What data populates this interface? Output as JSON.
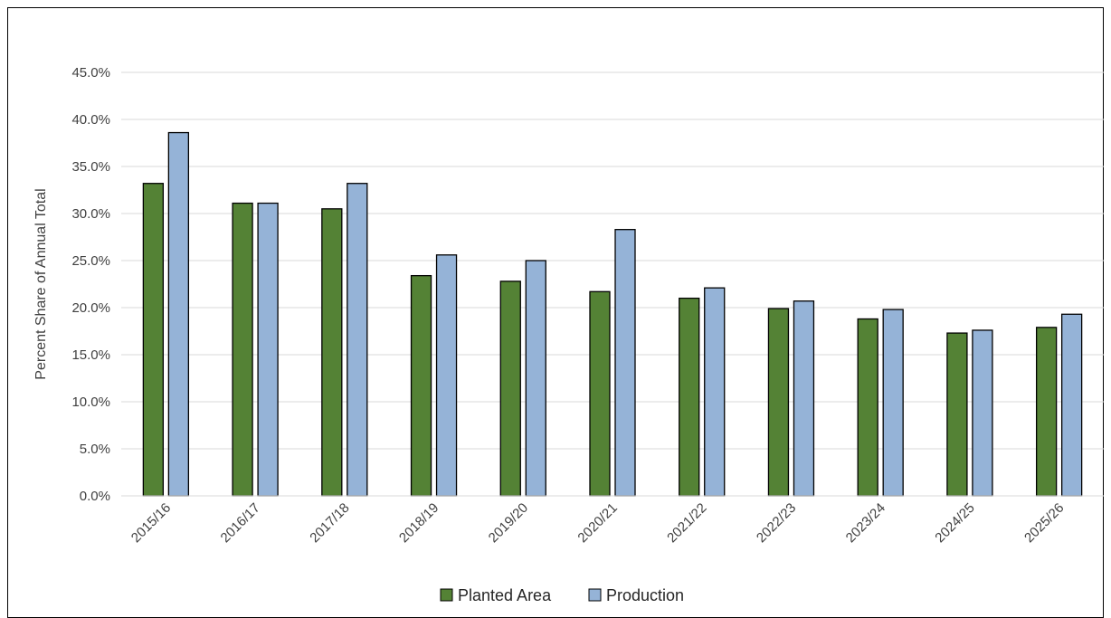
{
  "chart_data": {
    "type": "bar",
    "title": "",
    "xlabel": "",
    "ylabel": "Percent Share of Annual Total",
    "ylim": [
      0,
      45
    ],
    "y_tick_step": 5,
    "y_tick_format": "percent_1dp",
    "grid": "horizontal",
    "legend_position": "bottom-center",
    "categories": [
      "2015/16",
      "2016/17",
      "2017/18",
      "2018/19",
      "2019/20",
      "2020/21",
      "2021/22",
      "2022/23",
      "2023/24",
      "2024/25",
      "2025/26"
    ],
    "series": [
      {
        "name": "Planted Area",
        "color": "#548235",
        "values": [
          33.2,
          31.1,
          30.5,
          23.4,
          22.8,
          21.7,
          21.0,
          19.9,
          18.8,
          17.3,
          17.9
        ]
      },
      {
        "name": "Production",
        "color": "#95B3D7",
        "values": [
          38.6,
          31.1,
          33.2,
          25.6,
          25.0,
          28.3,
          22.1,
          20.7,
          19.8,
          17.6,
          19.3
        ]
      }
    ]
  }
}
